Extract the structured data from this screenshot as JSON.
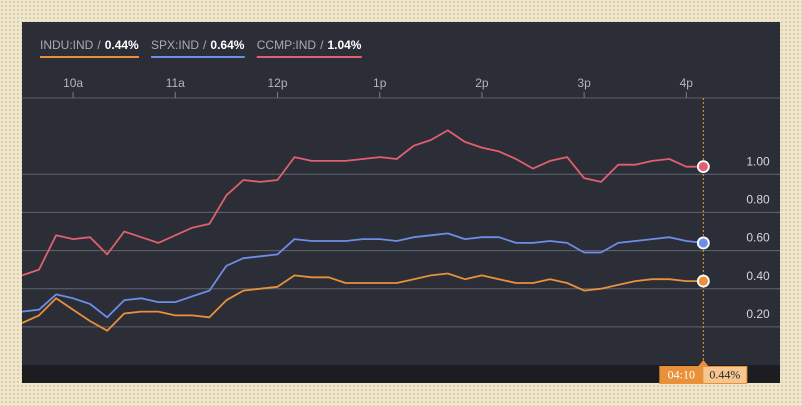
{
  "chart_data": {
    "type": "line",
    "separator": "/",
    "x": [
      570,
      580,
      590,
      600,
      610,
      620,
      630,
      640,
      650,
      660,
      670,
      680,
      690,
      700,
      710,
      720,
      730,
      740,
      750,
      760,
      770,
      780,
      790,
      800,
      810,
      820,
      830,
      840,
      850,
      860,
      870,
      880,
      890,
      900,
      910,
      920,
      930,
      940,
      950,
      960,
      970
    ],
    "xlim": [
      570,
      1015
    ],
    "xticks": [
      {
        "value": 600,
        "label": "10a"
      },
      {
        "value": 660,
        "label": "11a"
      },
      {
        "value": 720,
        "label": "12p"
      },
      {
        "value": 780,
        "label": "1p"
      },
      {
        "value": 840,
        "label": "2p"
      },
      {
        "value": 900,
        "label": "3p"
      },
      {
        "value": 960,
        "label": "4p"
      }
    ],
    "ylim": [
      0,
      1.4
    ],
    "yticks": [
      {
        "value": 0.2,
        "label": "0.20"
      },
      {
        "value": 0.4,
        "label": "0.40"
      },
      {
        "value": 0.6,
        "label": "0.60"
      },
      {
        "value": 0.8,
        "label": "0.80"
      },
      {
        "value": 1.0,
        "label": "1.00"
      }
    ],
    "grid": true,
    "series": [
      {
        "name": "INDU:IND",
        "legend_value": "0.44%",
        "color": "#e8913a",
        "values": [
          0.22,
          0.26,
          0.35,
          0.29,
          0.23,
          0.18,
          0.27,
          0.28,
          0.28,
          0.26,
          0.26,
          0.25,
          0.34,
          0.39,
          0.4,
          0.41,
          0.47,
          0.46,
          0.46,
          0.43,
          0.43,
          0.43,
          0.43,
          0.45,
          0.47,
          0.48,
          0.45,
          0.47,
          0.45,
          0.43,
          0.43,
          0.45,
          0.43,
          0.39,
          0.4,
          0.42,
          0.44,
          0.45,
          0.45,
          0.44,
          0.44
        ]
      },
      {
        "name": "SPX:IND",
        "legend_value": "0.64%",
        "color": "#6d8ee8",
        "values": [
          0.28,
          0.29,
          0.37,
          0.35,
          0.32,
          0.25,
          0.34,
          0.35,
          0.33,
          0.33,
          0.36,
          0.39,
          0.52,
          0.56,
          0.57,
          0.58,
          0.66,
          0.65,
          0.65,
          0.65,
          0.66,
          0.66,
          0.65,
          0.67,
          0.68,
          0.69,
          0.66,
          0.67,
          0.67,
          0.64,
          0.64,
          0.65,
          0.64,
          0.59,
          0.59,
          0.64,
          0.65,
          0.66,
          0.67,
          0.65,
          0.64
        ]
      },
      {
        "name": "CCMP:IND",
        "legend_value": "1.04%",
        "color": "#e0606f",
        "values": [
          0.47,
          0.5,
          0.68,
          0.66,
          0.67,
          0.58,
          0.7,
          0.67,
          0.64,
          0.68,
          0.72,
          0.74,
          0.89,
          0.97,
          0.96,
          0.97,
          1.09,
          1.07,
          1.07,
          1.07,
          1.08,
          1.09,
          1.08,
          1.15,
          1.18,
          1.23,
          1.17,
          1.14,
          1.12,
          1.08,
          1.03,
          1.07,
          1.09,
          0.98,
          0.96,
          1.05,
          1.05,
          1.07,
          1.08,
          1.04,
          1.04
        ]
      }
    ],
    "crosshair": {
      "x": 970,
      "time_label": "04:10",
      "value_label": "0.44%",
      "color": "#e8913a"
    }
  }
}
